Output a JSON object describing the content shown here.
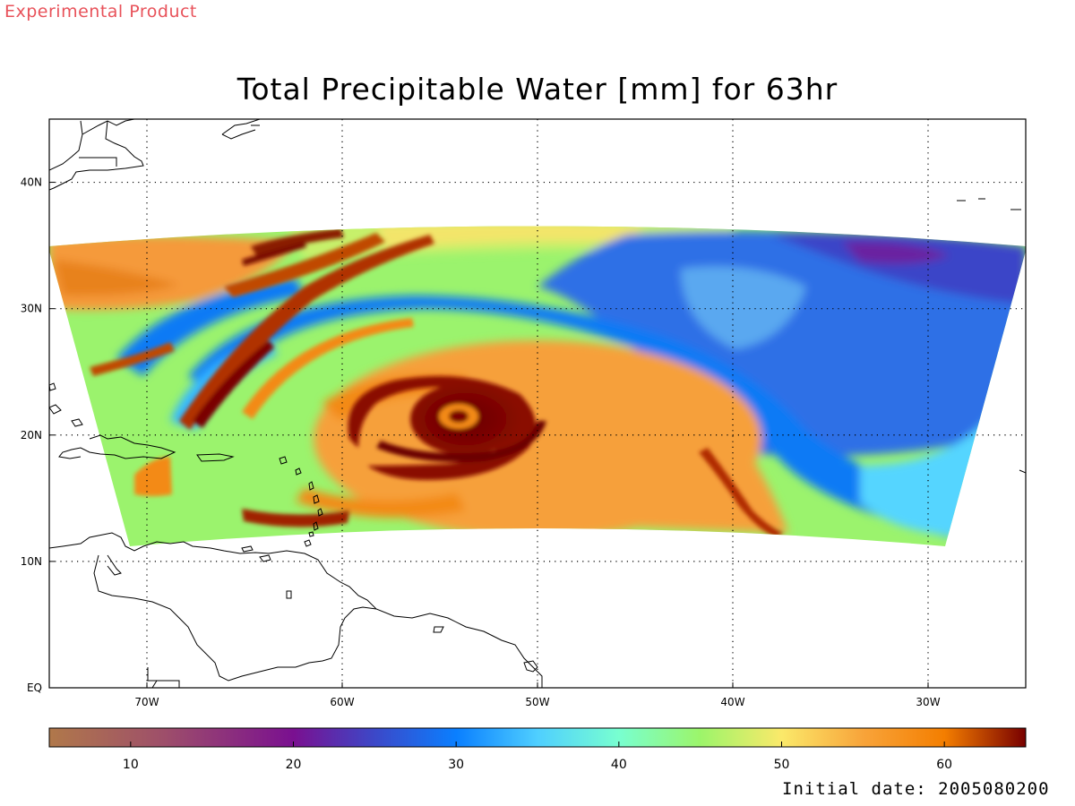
{
  "banner": "Experimental Product",
  "title": "Total Precipitable Water [mm] for 63hr",
  "initial_date": "Initial date: 2005080200",
  "map": {
    "projection": "lat-lon",
    "lon_range": [
      -75,
      -25
    ],
    "lat_range": [
      0,
      45
    ],
    "lon_ticks": [
      {
        "lon": -70,
        "label": "70W"
      },
      {
        "lon": -60,
        "label": "60W"
      },
      {
        "lon": -50,
        "label": "50W"
      },
      {
        "lon": -40,
        "label": "40W"
      },
      {
        "lon": -30,
        "label": "30W"
      }
    ],
    "lat_ticks": [
      {
        "lat": 0,
        "label": "EQ"
      },
      {
        "lat": 10,
        "label": "10N"
      },
      {
        "lat": 20,
        "label": "20N"
      },
      {
        "lat": 30,
        "label": "30N"
      },
      {
        "lat": 40,
        "label": "40N"
      }
    ],
    "grid": "dotted",
    "storm_center": {
      "lon": -54,
      "lat": 21.5
    },
    "field": "total precipitable water",
    "units": "mm"
  },
  "colorbar": {
    "min": 5,
    "max": 65,
    "ticks": [
      10,
      20,
      30,
      40,
      50,
      60
    ],
    "stops": [
      {
        "v": 5,
        "c": "#b0784a"
      },
      {
        "v": 12,
        "c": "#9e4f6a"
      },
      {
        "v": 20,
        "c": "#7a1090"
      },
      {
        "v": 25,
        "c": "#3c48c8"
      },
      {
        "v": 30,
        "c": "#0a7fff"
      },
      {
        "v": 35,
        "c": "#4fcfff"
      },
      {
        "v": 40,
        "c": "#78ffd0"
      },
      {
        "v": 45,
        "c": "#9cf56a"
      },
      {
        "v": 50,
        "c": "#fbe96a"
      },
      {
        "v": 55,
        "c": "#f8a43a"
      },
      {
        "v": 60,
        "c": "#f47e00"
      },
      {
        "v": 65,
        "c": "#780000"
      }
    ]
  }
}
